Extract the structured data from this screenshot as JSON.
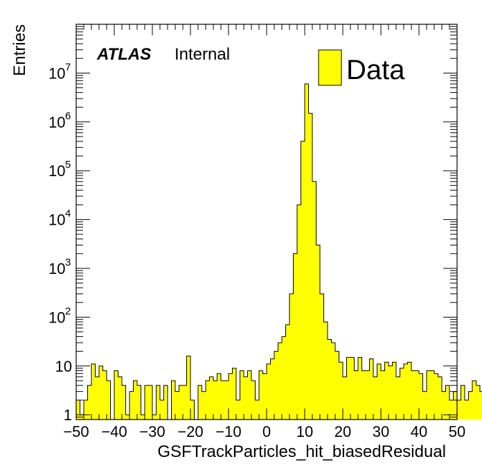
{
  "chart_data": {
    "type": "bar",
    "log_y": true,
    "xlabel": "GSFTrackParticles_hit_biasedResidual",
    "ylabel": "Entries",
    "xlim": [
      -50,
      50
    ],
    "ylim": [
      0.8,
      100000000
    ],
    "bin_width": 1,
    "bin_edges_start": -50,
    "x_ticks": [
      -50,
      -40,
      -30,
      -20,
      -10,
      0,
      10,
      20,
      30,
      40,
      50
    ],
    "x_tick_labels": [
      "−50",
      "−40",
      "−30",
      "−20",
      "−10",
      "0",
      "10",
      "20",
      "30",
      "40",
      "50"
    ],
    "y_ticks": [
      {
        "value": 1,
        "base": "1",
        "exp": ""
      },
      {
        "value": 10,
        "base": "10",
        "exp": ""
      },
      {
        "value": 100,
        "base": "10",
        "exp": "2"
      },
      {
        "value": 1000,
        "base": "10",
        "exp": "3"
      },
      {
        "value": 10000,
        "base": "10",
        "exp": "4"
      },
      {
        "value": 100000,
        "base": "10",
        "exp": "5"
      },
      {
        "value": 1000000,
        "base": "10",
        "exp": "6"
      },
      {
        "value": 10000000,
        "base": "10",
        "exp": "7"
      }
    ],
    "series": [
      {
        "name": "Data",
        "color": "#ffff00",
        "values": [
          2,
          1,
          2,
          4,
          11,
          6,
          10,
          8,
          5,
          0,
          8,
          6,
          4,
          1,
          3,
          5,
          4,
          1,
          4,
          4,
          1,
          4,
          2,
          4,
          0,
          5,
          3,
          4,
          4,
          16,
          2,
          0,
          4,
          3,
          5,
          6,
          5,
          7,
          5,
          5,
          7,
          9,
          2,
          8,
          6,
          8,
          5,
          2,
          8,
          7,
          11,
          14,
          20,
          30,
          40,
          70,
          300,
          2000,
          20000,
          400000,
          6000000,
          1500000,
          60000,
          3000,
          300,
          80,
          35,
          30,
          20,
          12,
          6,
          15,
          15,
          8,
          15,
          8,
          8,
          14,
          6,
          11,
          8,
          12,
          10,
          12,
          6,
          9,
          11,
          12,
          8,
          8,
          7,
          3,
          8,
          8,
          7,
          6,
          3,
          4,
          2,
          3,
          2,
          4,
          2,
          3,
          5,
          4,
          3,
          1,
          0,
          1,
          3,
          4
        ]
      }
    ],
    "annotations": {
      "atlas": "ATLAS",
      "status": "Internal"
    }
  },
  "legend": {
    "label": "Data",
    "color": "#ffff00",
    "position": "top-right"
  }
}
